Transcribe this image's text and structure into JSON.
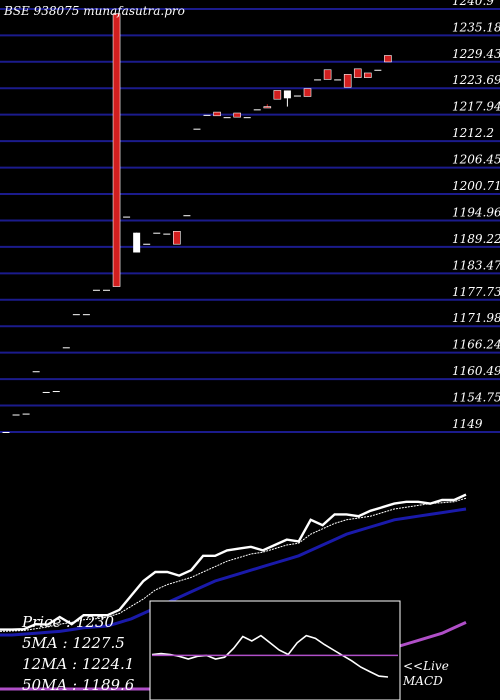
{
  "header": {
    "title": "BSE 938075 munafasutra.pro"
  },
  "colors": {
    "background": "#000000",
    "grid": "#1b1b8c",
    "up": "#ffffff",
    "down": "#d21f1f",
    "ma_fast": "#ffffff",
    "ma_mid": "#1a1aaa",
    "ma_slow": "#b04fc8",
    "macd_line": "#ffffff",
    "macd_signal": "#b04fc8"
  },
  "chart_data": [
    {
      "type": "candlestick",
      "title": "BSE 938075 munafasutra.pro",
      "y_tick_labels": [
        "1240.9",
        "1235.18",
        "1229.43",
        "1223.69",
        "1217.94",
        "1212.2",
        "1206.45",
        "1200.71",
        "1194.96",
        "1189.22",
        "1183.47",
        "1177.73",
        "1171.98",
        "1166.24",
        "1160.49",
        "1154.75",
        "1149"
      ],
      "ylim": [
        1149,
        1240.9
      ],
      "grid": true,
      "candles": [
        {
          "o": 1149.0,
          "h": 1149.0,
          "l": 1149.0,
          "c": 1149.0
        },
        {
          "o": 1152.8,
          "h": 1152.8,
          "l": 1152.8,
          "c": 1152.8
        },
        {
          "o": 1153.0,
          "h": 1153.0,
          "l": 1153.0,
          "c": 1153.0
        },
        {
          "o": 1162.2,
          "h": 1162.2,
          "l": 1162.2,
          "c": 1162.2
        },
        {
          "o": 1157.7,
          "h": 1157.7,
          "l": 1157.7,
          "c": 1157.7
        },
        {
          "o": 1157.9,
          "h": 1157.9,
          "l": 1157.9,
          "c": 1157.9
        },
        {
          "o": 1167.4,
          "h": 1167.4,
          "l": 1167.4,
          "c": 1167.4
        },
        {
          "o": 1174.6,
          "h": 1174.6,
          "l": 1174.6,
          "c": 1174.6
        },
        {
          "o": 1174.6,
          "h": 1174.6,
          "l": 1174.6,
          "c": 1174.6
        },
        {
          "o": 1179.9,
          "h": 1179.9,
          "l": 1179.9,
          "c": 1179.9
        },
        {
          "o": 1179.9,
          "h": 1179.9,
          "l": 1179.9,
          "c": 1179.9
        },
        {
          "o": 1239.9,
          "h": 1239.9,
          "l": 1180.6,
          "c": 1180.6
        },
        {
          "o": 1195.8,
          "h": 1195.8,
          "l": 1195.8,
          "c": 1195.8
        },
        {
          "o": 1188.0,
          "h": 1192.3,
          "l": 1188.0,
          "c": 1192.3
        },
        {
          "o": 1189.9,
          "h": 1189.9,
          "l": 1189.9,
          "c": 1189.9
        },
        {
          "o": 1192.3,
          "h": 1192.3,
          "l": 1192.3,
          "c": 1192.3
        },
        {
          "o": 1192.1,
          "h": 1192.1,
          "l": 1192.1,
          "c": 1192.1
        },
        {
          "o": 1192.6,
          "h": 1192.6,
          "l": 1189.8,
          "c": 1189.8
        },
        {
          "o": 1196.1,
          "h": 1196.1,
          "l": 1196.1,
          "c": 1196.1
        },
        {
          "o": 1214.9,
          "h": 1214.9,
          "l": 1214.9,
          "c": 1214.9
        },
        {
          "o": 1217.9,
          "h": 1217.9,
          "l": 1217.9,
          "c": 1217.9
        },
        {
          "o": 1218.5,
          "h": 1218.5,
          "l": 1217.7,
          "c": 1217.7
        },
        {
          "o": 1217.4,
          "h": 1217.4,
          "l": 1217.4,
          "c": 1217.4
        },
        {
          "o": 1218.3,
          "h": 1218.3,
          "l": 1217.4,
          "c": 1217.4
        },
        {
          "o": 1217.4,
          "h": 1217.4,
          "l": 1217.4,
          "c": 1217.4
        },
        {
          "o": 1219.1,
          "h": 1219.1,
          "l": 1219.1,
          "c": 1219.1
        },
        {
          "o": 1219.7,
          "h": 1220.2,
          "l": 1219.4,
          "c": 1219.4
        },
        {
          "o": 1223.2,
          "h": 1223.2,
          "l": 1221.3,
          "c": 1221.3
        },
        {
          "o": 1221.5,
          "h": 1223.2,
          "l": 1219.7,
          "c": 1223.2
        },
        {
          "o": 1222.1,
          "h": 1222.1,
          "l": 1222.1,
          "c": 1222.1
        },
        {
          "o": 1223.6,
          "h": 1223.6,
          "l": 1221.9,
          "c": 1221.9
        },
        {
          "o": 1225.6,
          "h": 1225.6,
          "l": 1225.6,
          "c": 1225.6
        },
        {
          "o": 1227.7,
          "h": 1227.7,
          "l": 1225.6,
          "c": 1225.6
        },
        {
          "o": 1225.6,
          "h": 1225.6,
          "l": 1225.6,
          "c": 1225.6
        },
        {
          "o": 1226.7,
          "h": 1226.7,
          "l": 1223.9,
          "c": 1223.9
        },
        {
          "o": 1227.9,
          "h": 1227.9,
          "l": 1226.0,
          "c": 1226.0
        },
        {
          "o": 1227.0,
          "h": 1227.0,
          "l": 1226.0,
          "c": 1226.0
        },
        {
          "o": 1227.7,
          "h": 1227.7,
          "l": 1227.7,
          "c": 1227.7
        },
        {
          "o": 1230.8,
          "h": 1230.8,
          "l": 1229.4,
          "c": 1229.4
        }
      ]
    },
    {
      "type": "line",
      "x_count": 40,
      "series": [
        {
          "name": "Price",
          "values": [
            0.3,
            0.3,
            0.32,
            0.6,
            0.58,
            1.0,
            0.6,
            1.1,
            1.1,
            1.1,
            1.4,
            2.2,
            3.0,
            3.5,
            3.5,
            3.3,
            3.6,
            4.4,
            4.4,
            4.7,
            4.8,
            4.9,
            4.7,
            5.0,
            5.3,
            5.2,
            6.4,
            6.1,
            6.7,
            6.7,
            6.6,
            6.9,
            7.1,
            7.3,
            7.4,
            7.4,
            7.3,
            7.5,
            7.5,
            7.8
          ]
        },
        {
          "name": "5MA",
          "values": [
            0.2,
            0.22,
            0.25,
            0.35,
            0.45,
            0.6,
            0.7,
            0.85,
            0.9,
            1.0,
            1.2,
            1.6,
            2.0,
            2.5,
            2.8,
            3.0,
            3.2,
            3.5,
            3.8,
            4.1,
            4.3,
            4.5,
            4.6,
            4.8,
            5.0,
            5.1,
            5.6,
            5.9,
            6.2,
            6.4,
            6.5,
            6.6,
            6.8,
            7.0,
            7.1,
            7.2,
            7.3,
            7.35,
            7.4,
            7.6
          ]
        },
        {
          "name": "12MA",
          "values": [
            0.0,
            0.0,
            0.05,
            0.1,
            0.15,
            0.2,
            0.3,
            0.4,
            0.45,
            0.5,
            0.7,
            0.9,
            1.2,
            1.5,
            1.8,
            2.1,
            2.4,
            2.7,
            3.0,
            3.2,
            3.4,
            3.6,
            3.8,
            4.0,
            4.2,
            4.4,
            4.7,
            5.0,
            5.3,
            5.6,
            5.8,
            6.0,
            6.2,
            6.4,
            6.5,
            6.6,
            6.7,
            6.8,
            6.9,
            7.0
          ]
        },
        {
          "name": "50MA",
          "values": [
            -3.0,
            -3.0,
            -3.0,
            -3.0,
            -3.0,
            -3.0,
            -3.0,
            -3.0,
            -3.0,
            -3.0,
            -3.0,
            -3.0,
            -3.0,
            -3.0,
            -3.0,
            -3.0,
            -3.0,
            -3.0,
            -3.0,
            -3.0,
            -3.0,
            -3.0,
            -2.9,
            -2.7,
            -2.5,
            -2.3,
            -2.1,
            -1.9,
            -1.7,
            -1.5,
            -1.3,
            -1.1,
            -0.9,
            -0.7,
            -0.5,
            -0.3,
            -0.1,
            0.1,
            0.4,
            0.7
          ]
        }
      ],
      "legend": [
        "Price : 1230",
        "5MA : 1227.5",
        "12MA : 1224.1",
        "50MA : 1189.6"
      ]
    },
    {
      "type": "line",
      "series": [
        {
          "name": "MACD",
          "values": [
            4.5,
            4.6,
            4.5,
            4.3,
            4.0,
            4.3,
            4.4,
            4.0,
            4.2,
            5.2,
            6.5,
            6.0,
            6.6,
            5.8,
            5.0,
            4.5,
            5.8,
            6.6,
            6.3,
            5.6,
            5.0,
            4.4,
            3.8,
            3.1,
            2.6,
            2.1,
            2.0
          ]
        },
        {
          "name": "Signal",
          "values": [
            4.4,
            4.4,
            4.4,
            4.4,
            4.4,
            4.4,
            4.4,
            4.4,
            4.4,
            4.4,
            4.4,
            4.4,
            4.4,
            4.4,
            4.4,
            4.4,
            4.4,
            4.4,
            4.4,
            4.4,
            4.4,
            4.4,
            4.4,
            4.4,
            4.4,
            4.4,
            4.4
          ]
        }
      ],
      "legend": [
        "<<Live",
        "MACD"
      ]
    }
  ]
}
